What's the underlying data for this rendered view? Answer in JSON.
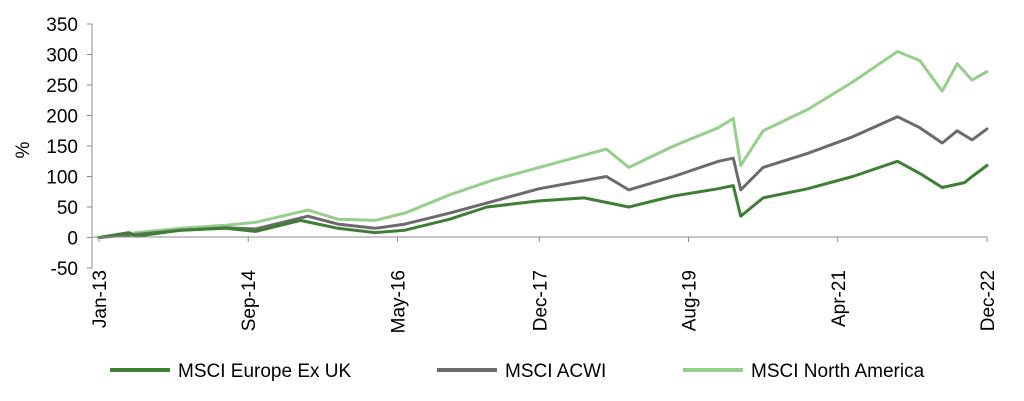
{
  "chart_data": {
    "type": "line",
    "title": "",
    "xlabel": "",
    "ylabel": "%",
    "ylim": [
      -50,
      350
    ],
    "y_ticks": [
      "350",
      "300",
      "250",
      "200",
      "150",
      "100",
      "50",
      "0",
      "-50"
    ],
    "x_range": [
      "2013-01",
      "2022-12"
    ],
    "x_tick_labels": [
      "Jan-13",
      "Sep-14",
      "May-16",
      "Dec-17",
      "Aug-19",
      "Apr-21",
      "Dec-22"
    ],
    "grid": false,
    "legend_position": "bottom",
    "series": [
      {
        "name": "MSCI Europe Ex UK",
        "color": "#3f7f35",
        "points": [
          [
            "2013-01",
            0
          ],
          [
            "2013-05",
            8
          ],
          [
            "2013-06",
            2
          ],
          [
            "2013-12",
            12
          ],
          [
            "2014-06",
            15
          ],
          [
            "2014-10",
            10
          ],
          [
            "2015-04",
            28
          ],
          [
            "2015-09",
            15
          ],
          [
            "2016-02",
            8
          ],
          [
            "2016-06",
            12
          ],
          [
            "2016-12",
            30
          ],
          [
            "2017-05",
            50
          ],
          [
            "2017-12",
            60
          ],
          [
            "2018-06",
            65
          ],
          [
            "2018-12",
            50
          ],
          [
            "2019-06",
            68
          ],
          [
            "2019-12",
            80
          ],
          [
            "2020-02",
            85
          ],
          [
            "2020-03",
            35
          ],
          [
            "2020-06",
            65
          ],
          [
            "2020-12",
            80
          ],
          [
            "2021-06",
            100
          ],
          [
            "2021-12",
            125
          ],
          [
            "2022-03",
            105
          ],
          [
            "2022-06",
            82
          ],
          [
            "2022-09",
            90
          ],
          [
            "2022-10",
            100
          ],
          [
            "2022-12",
            118
          ]
        ]
      },
      {
        "name": "MSCI ACWI",
        "color": "#6b6b6b",
        "points": [
          [
            "2013-01",
            0
          ],
          [
            "2013-06",
            5
          ],
          [
            "2013-12",
            12
          ],
          [
            "2014-06",
            16
          ],
          [
            "2014-10",
            14
          ],
          [
            "2015-05",
            35
          ],
          [
            "2015-09",
            22
          ],
          [
            "2016-02",
            15
          ],
          [
            "2016-06",
            22
          ],
          [
            "2016-12",
            40
          ],
          [
            "2017-06",
            60
          ],
          [
            "2017-12",
            80
          ],
          [
            "2018-09",
            100
          ],
          [
            "2018-12",
            78
          ],
          [
            "2019-06",
            100
          ],
          [
            "2019-12",
            125
          ],
          [
            "2020-02",
            130
          ],
          [
            "2020-03",
            78
          ],
          [
            "2020-06",
            115
          ],
          [
            "2020-12",
            138
          ],
          [
            "2021-06",
            165
          ],
          [
            "2021-12",
            198
          ],
          [
            "2022-03",
            180
          ],
          [
            "2022-06",
            155
          ],
          [
            "2022-08",
            175
          ],
          [
            "2022-10",
            160
          ],
          [
            "2022-12",
            178
          ]
        ]
      },
      {
        "name": "MSCI North America",
        "color": "#96ce8c",
        "points": [
          [
            "2013-01",
            0
          ],
          [
            "2013-06",
            8
          ],
          [
            "2013-12",
            15
          ],
          [
            "2014-06",
            20
          ],
          [
            "2014-10",
            25
          ],
          [
            "2015-05",
            45
          ],
          [
            "2015-09",
            30
          ],
          [
            "2016-02",
            28
          ],
          [
            "2016-06",
            40
          ],
          [
            "2016-12",
            70
          ],
          [
            "2017-06",
            95
          ],
          [
            "2017-12",
            115
          ],
          [
            "2018-09",
            145
          ],
          [
            "2018-12",
            115
          ],
          [
            "2019-06",
            150
          ],
          [
            "2019-12",
            180
          ],
          [
            "2020-02",
            195
          ],
          [
            "2020-03",
            118
          ],
          [
            "2020-06",
            175
          ],
          [
            "2020-12",
            210
          ],
          [
            "2021-06",
            255
          ],
          [
            "2021-12",
            305
          ],
          [
            "2022-03",
            290
          ],
          [
            "2022-06",
            240
          ],
          [
            "2022-08",
            285
          ],
          [
            "2022-10",
            258
          ],
          [
            "2022-12",
            272
          ]
        ]
      }
    ]
  }
}
